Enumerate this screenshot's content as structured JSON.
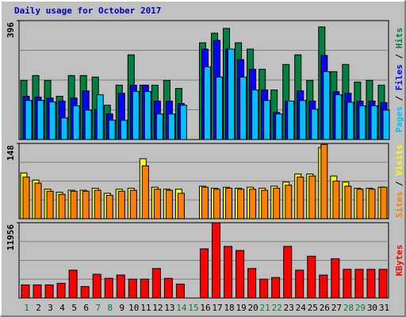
{
  "chart_data": [
    {
      "type": "bar",
      "title": "Daily usage for October 2017",
      "ylim": [
        0,
        396
      ],
      "yticks": [
        396
      ],
      "legend_separator": " / ",
      "series": [
        {
          "name": "Hits",
          "color": "#008040",
          "values": [
            197,
            213,
            197,
            144,
            213,
            213,
            208,
            114,
            181,
            282,
            181,
            181,
            197,
            170,
            null,
            322,
            354,
            370,
            322,
            301,
            234,
            165,
            250,
            282,
            197,
            375,
            226,
            250,
            191,
            197,
            181
          ]
        },
        {
          "name": "Files",
          "color": "#0000ff",
          "values": [
            144,
            141,
            138,
            128,
            138,
            162,
            101,
            85,
            154,
            181,
            181,
            128,
            128,
            120,
            null,
            301,
            330,
            301,
            266,
            234,
            165,
            90,
            128,
            162,
            128,
            280,
            159,
            154,
            128,
            128,
            123
          ]
        },
        {
          "name": "Pages",
          "color": "#00c0ff",
          "values": [
            130,
            130,
            125,
            72,
            112,
            98,
            149,
            64,
            64,
            160,
            160,
            85,
            85,
            114,
            null,
            242,
            208,
            301,
            208,
            165,
            130,
            85,
            128,
            130,
            101,
            226,
            149,
            124,
            112,
            112,
            98
          ]
        }
      ]
    },
    {
      "type": "bar",
      "ylim": [
        0,
        148
      ],
      "yticks": [
        148
      ],
      "legend_separator": " / ",
      "series": [
        {
          "name": "Visits",
          "color": "#ffff00",
          "values": [
            90,
            76,
            58,
            52,
            56,
            56,
            60,
            50,
            58,
            60,
            118,
            62,
            58,
            58,
            null,
            64,
            60,
            62,
            60,
            62,
            60,
            64,
            72,
            88,
            88,
            140,
            84,
            72,
            60,
            60,
            62
          ]
        },
        {
          "name": "Sites",
          "color": "#ff8000",
          "values": [
            82,
            70,
            54,
            48,
            54,
            54,
            56,
            46,
            54,
            56,
            104,
            58,
            56,
            50,
            null,
            62,
            58,
            60,
            58,
            58,
            56,
            60,
            66,
            82,
            84,
            146,
            74,
            64,
            58,
            58,
            62
          ]
        }
      ]
    },
    {
      "type": "bar",
      "ylim": [
        0,
        11956
      ],
      "yticks": [
        11956
      ],
      "categories": [
        "1",
        "2",
        "3",
        "4",
        "5",
        "6",
        "7",
        "8",
        "9",
        "10",
        "11",
        "12",
        "13",
        "14",
        "15",
        "16",
        "17",
        "18",
        "19",
        "20",
        "21",
        "22",
        "23",
        "24",
        "25",
        "26",
        "27",
        "28",
        "29",
        "30",
        "31"
      ],
      "highlight_categories": [
        "1",
        "7",
        "8",
        "14",
        "15",
        "21",
        "22",
        "28",
        "29"
      ],
      "highlight_color": "#008040",
      "series": [
        {
          "name": "KBytes",
          "color": "#ff0000",
          "values": [
            2080,
            2080,
            2080,
            2340,
            4420,
            1820,
            3770,
            3120,
            3640,
            2990,
            2990,
            4680,
            3120,
            2210,
            null,
            7800,
            11956,
            8190,
            7540,
            4680,
            2990,
            3250,
            8190,
            4420,
            6630,
            3640,
            6240,
            4550,
            4550,
            4550,
            4550
          ]
        }
      ]
    }
  ]
}
